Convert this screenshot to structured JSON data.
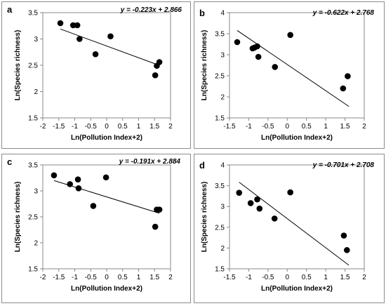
{
  "chart_data": [
    {
      "panel": "a",
      "type": "scatter",
      "equation": "y = -0.223x + 2.866",
      "xlabel": "Ln(Pollution Index+2)",
      "ylabel": "Ln(Species richness)",
      "xlim": [
        -2,
        2
      ],
      "ylim": [
        1.5,
        3.5
      ],
      "xticks": [
        -2,
        -1.5,
        -1,
        -0.5,
        0,
        0.5,
        1,
        1.5,
        2
      ],
      "yticks": [
        1.5,
        2,
        2.5,
        3,
        3.5
      ],
      "xtick_labels": [
        "-2",
        "-1.5",
        "-1",
        "-0.5",
        "0",
        "0.5",
        "1",
        "1.5",
        "2"
      ],
      "ytick_labels": [
        "1.5",
        "2",
        "2.5",
        "3",
        "3.5"
      ],
      "trendline": {
        "slope": -0.223,
        "intercept": 2.866,
        "x_range": [
          -1.45,
          1.65
        ]
      },
      "points": [
        {
          "x": -1.45,
          "y": 3.3
        },
        {
          "x": -1.05,
          "y": 3.26
        },
        {
          "x": -0.92,
          "y": 3.26
        },
        {
          "x": -0.85,
          "y": 3.0
        },
        {
          "x": -0.35,
          "y": 2.71
        },
        {
          "x": 0.12,
          "y": 3.05
        },
        {
          "x": 1.52,
          "y": 2.31
        },
        {
          "x": 1.57,
          "y": 2.49
        },
        {
          "x": 1.65,
          "y": 2.56
        }
      ]
    },
    {
      "panel": "b",
      "type": "scatter",
      "equation": "y = -0.622x + 2.768",
      "xlabel": "Ln(Pollution Index+2)",
      "ylabel": "Ln(Species richness)",
      "xlim": [
        -1.5,
        2
      ],
      "ylim": [
        1.5,
        4
      ],
      "xticks": [
        -1.5,
        -1,
        -0.5,
        0,
        0.5,
        1,
        1.5,
        2
      ],
      "yticks": [
        1.5,
        2,
        2.5,
        3,
        3.5,
        4
      ],
      "xtick_labels": [
        "-1.5",
        "-1",
        "-0.5",
        "0",
        "0.5",
        "1",
        "1.5",
        "2"
      ],
      "ytick_labels": [
        "1.5",
        "2",
        "2.5",
        "3",
        "3.5",
        "4"
      ],
      "trendline": {
        "slope": -0.622,
        "intercept": 2.768,
        "x_range": [
          -1.3,
          1.6
        ]
      },
      "points": [
        {
          "x": -1.3,
          "y": 3.3
        },
        {
          "x": -0.9,
          "y": 3.15
        },
        {
          "x": -0.85,
          "y": 3.17
        },
        {
          "x": -0.78,
          "y": 3.2
        },
        {
          "x": -0.75,
          "y": 2.95
        },
        {
          "x": -0.32,
          "y": 2.71
        },
        {
          "x": 0.08,
          "y": 3.47
        },
        {
          "x": 1.45,
          "y": 2.2
        },
        {
          "x": 1.57,
          "y": 2.49
        }
      ]
    },
    {
      "panel": "c",
      "type": "scatter",
      "equation": "y = -0.191x + 2.884",
      "xlabel": "Ln(Pollution Index+2)",
      "ylabel": "Ln(Species richness)",
      "xlim": [
        -2,
        2
      ],
      "ylim": [
        1.5,
        3.5
      ],
      "xticks": [
        -2,
        -1.5,
        -1,
        -0.5,
        0,
        0.5,
        1,
        1.5,
        2
      ],
      "yticks": [
        1.5,
        2,
        2.5,
        3,
        3.5
      ],
      "xtick_labels": [
        "-2",
        "-1.5",
        "-1",
        "-0.5",
        "0",
        "0.5",
        "1",
        "1.5",
        "2"
      ],
      "ytick_labels": [
        "1.5",
        "2",
        "2.5",
        "3",
        "3.5"
      ],
      "trendline": {
        "slope": -0.191,
        "intercept": 2.884,
        "x_range": [
          -1.65,
          1.65
        ]
      },
      "points": [
        {
          "x": -1.65,
          "y": 3.3
        },
        {
          "x": -1.15,
          "y": 3.13
        },
        {
          "x": -0.9,
          "y": 3.22
        },
        {
          "x": -0.88,
          "y": 3.05
        },
        {
          "x": -0.42,
          "y": 2.71
        },
        {
          "x": -0.02,
          "y": 3.26
        },
        {
          "x": 1.52,
          "y": 2.31
        },
        {
          "x": 1.57,
          "y": 2.64
        },
        {
          "x": 1.65,
          "y": 2.64
        }
      ]
    },
    {
      "panel": "d",
      "type": "scatter",
      "equation": "y = -0.701x + 2.708",
      "xlabel": "Ln(Pollution Index+2)",
      "ylabel": "Ln(Species richness)",
      "xlim": [
        -1.5,
        2
      ],
      "ylim": [
        1.5,
        4
      ],
      "xticks": [
        -1.5,
        -1,
        -0.5,
        0,
        0.5,
        1,
        1.5,
        2
      ],
      "yticks": [
        1.5,
        2,
        2.5,
        3,
        3.5,
        4
      ],
      "xtick_labels": [
        "-1.5",
        "-1",
        "-0.5",
        "0",
        "0.5",
        "1",
        "1.5",
        "2"
      ],
      "ytick_labels": [
        "1.5",
        "2",
        "2.5",
        "3",
        "3.5",
        "4"
      ],
      "trendline": {
        "slope": -0.701,
        "intercept": 2.708,
        "x_range": [
          -1.25,
          1.6
        ]
      },
      "points": [
        {
          "x": -1.25,
          "y": 3.33
        },
        {
          "x": -0.95,
          "y": 3.08
        },
        {
          "x": -0.78,
          "y": 3.17
        },
        {
          "x": -0.72,
          "y": 2.95
        },
        {
          "x": -0.33,
          "y": 2.71
        },
        {
          "x": 0.08,
          "y": 3.34
        },
        {
          "x": 1.47,
          "y": 2.3
        },
        {
          "x": 1.55,
          "y": 1.95
        }
      ]
    }
  ]
}
